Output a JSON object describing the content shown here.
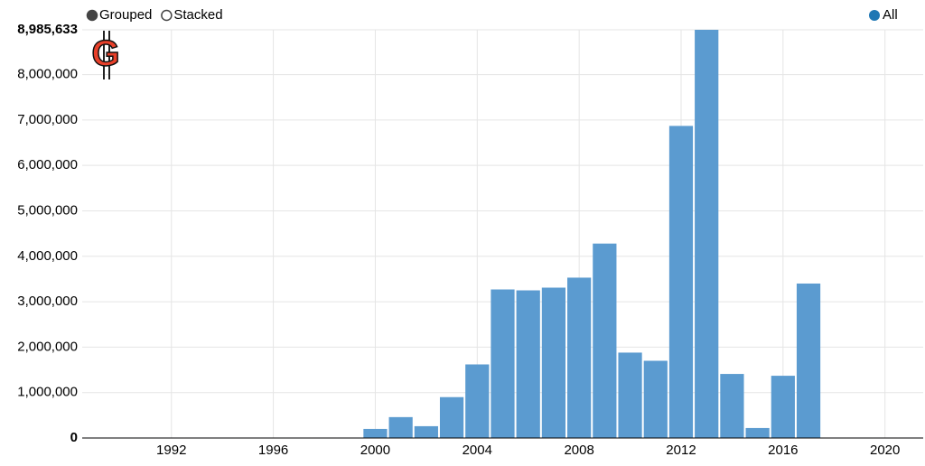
{
  "chart_data": {
    "type": "bar",
    "controls": [
      "Grouped",
      "Stacked"
    ],
    "x": [
      1989,
      1990,
      1991,
      1992,
      1993,
      1994,
      1995,
      1996,
      1997,
      1998,
      1999,
      2000,
      2001,
      2002,
      2003,
      2004,
      2005,
      2006,
      2007,
      2008,
      2009,
      2010,
      2011,
      2012,
      2013,
      2014,
      2015,
      2016,
      2017,
      2018,
      2019,
      2020,
      2021
    ],
    "series": [
      {
        "name": "All",
        "color": "#5b9bd0",
        "legend_color": "#1f77b4",
        "values": [
          10000,
          10000,
          10000,
          10000,
          10000,
          10000,
          10000,
          10000,
          10000,
          10000,
          10000,
          200000,
          460000,
          260000,
          900000,
          1620000,
          3270000,
          3250000,
          3310000,
          3530000,
          4280000,
          1880000,
          1700000,
          6870000,
          8985633,
          1410000,
          220000,
          1370000,
          3400000,
          10000,
          10000,
          10000,
          10000
        ]
      }
    ],
    "xlim": [
      1988.5,
      2021.5
    ],
    "xticks": [
      1992,
      1996,
      2000,
      2004,
      2008,
      2012,
      2016,
      2020
    ],
    "ylim": [
      0,
      8985633
    ],
    "yticks": [
      0,
      {
        "value": 1000000,
        "label": "1,000,000"
      },
      {
        "value": 2000000,
        "label": "2,000,000"
      },
      {
        "value": 3000000,
        "label": "3,000,000"
      },
      {
        "value": 4000000,
        "label": "4,000,000"
      },
      {
        "value": 5000000,
        "label": "5,000,000"
      },
      {
        "value": 6000000,
        "label": "6,000,000"
      },
      {
        "value": 7000000,
        "label": "7,000,000"
      },
      {
        "value": 8000000,
        "label": "8,000,000"
      },
      {
        "value": 8985633,
        "label": "8,985,633"
      }
    ],
    "grid": true
  }
}
